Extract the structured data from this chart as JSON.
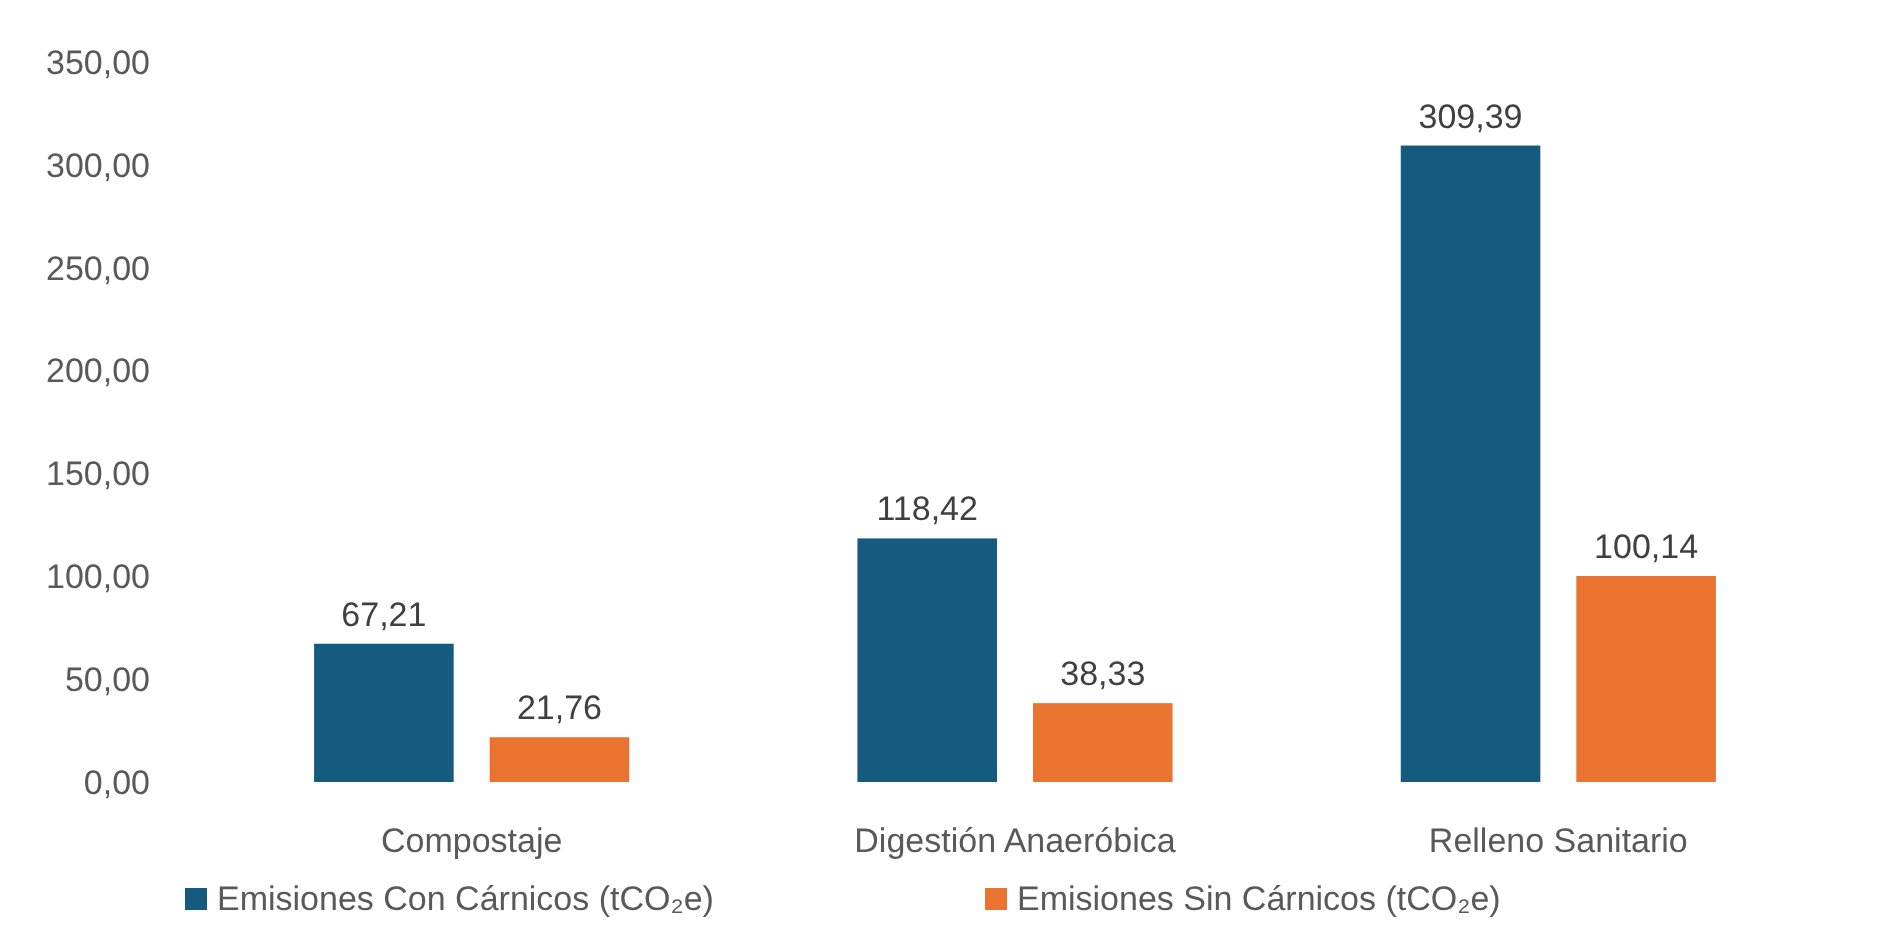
{
  "chart_data": {
    "type": "bar",
    "categories": [
      "Compostaje",
      "Digestión Anaeróbica",
      "Relleno Sanitario"
    ],
    "series": [
      {
        "name": "Emisiones Con Cárnicos (tCO₂e)",
        "color": "#155a7f",
        "values": [
          67.21,
          118.42,
          309.39
        ],
        "value_labels": [
          "67,21",
          "118,42",
          "309,39"
        ]
      },
      {
        "name": "Emisiones Sin Cárnicos (tCO₂e)",
        "color": "#ea7330",
        "values": [
          21.76,
          38.33,
          100.14
        ],
        "value_labels": [
          "21,76",
          "38,33",
          "100,14"
        ]
      }
    ],
    "ylim": [
      0,
      350
    ],
    "yticks": [
      {
        "value": 0,
        "label": "0,00"
      },
      {
        "value": 50,
        "label": "50,00"
      },
      {
        "value": 100,
        "label": "100,00"
      },
      {
        "value": 150,
        "label": "150,00"
      },
      {
        "value": 200,
        "label": "200,00"
      },
      {
        "value": 250,
        "label": "250,00"
      },
      {
        "value": 300,
        "label": "300,00"
      },
      {
        "value": 350,
        "label": "350,00"
      }
    ],
    "grid": false,
    "legend": "bottom"
  }
}
